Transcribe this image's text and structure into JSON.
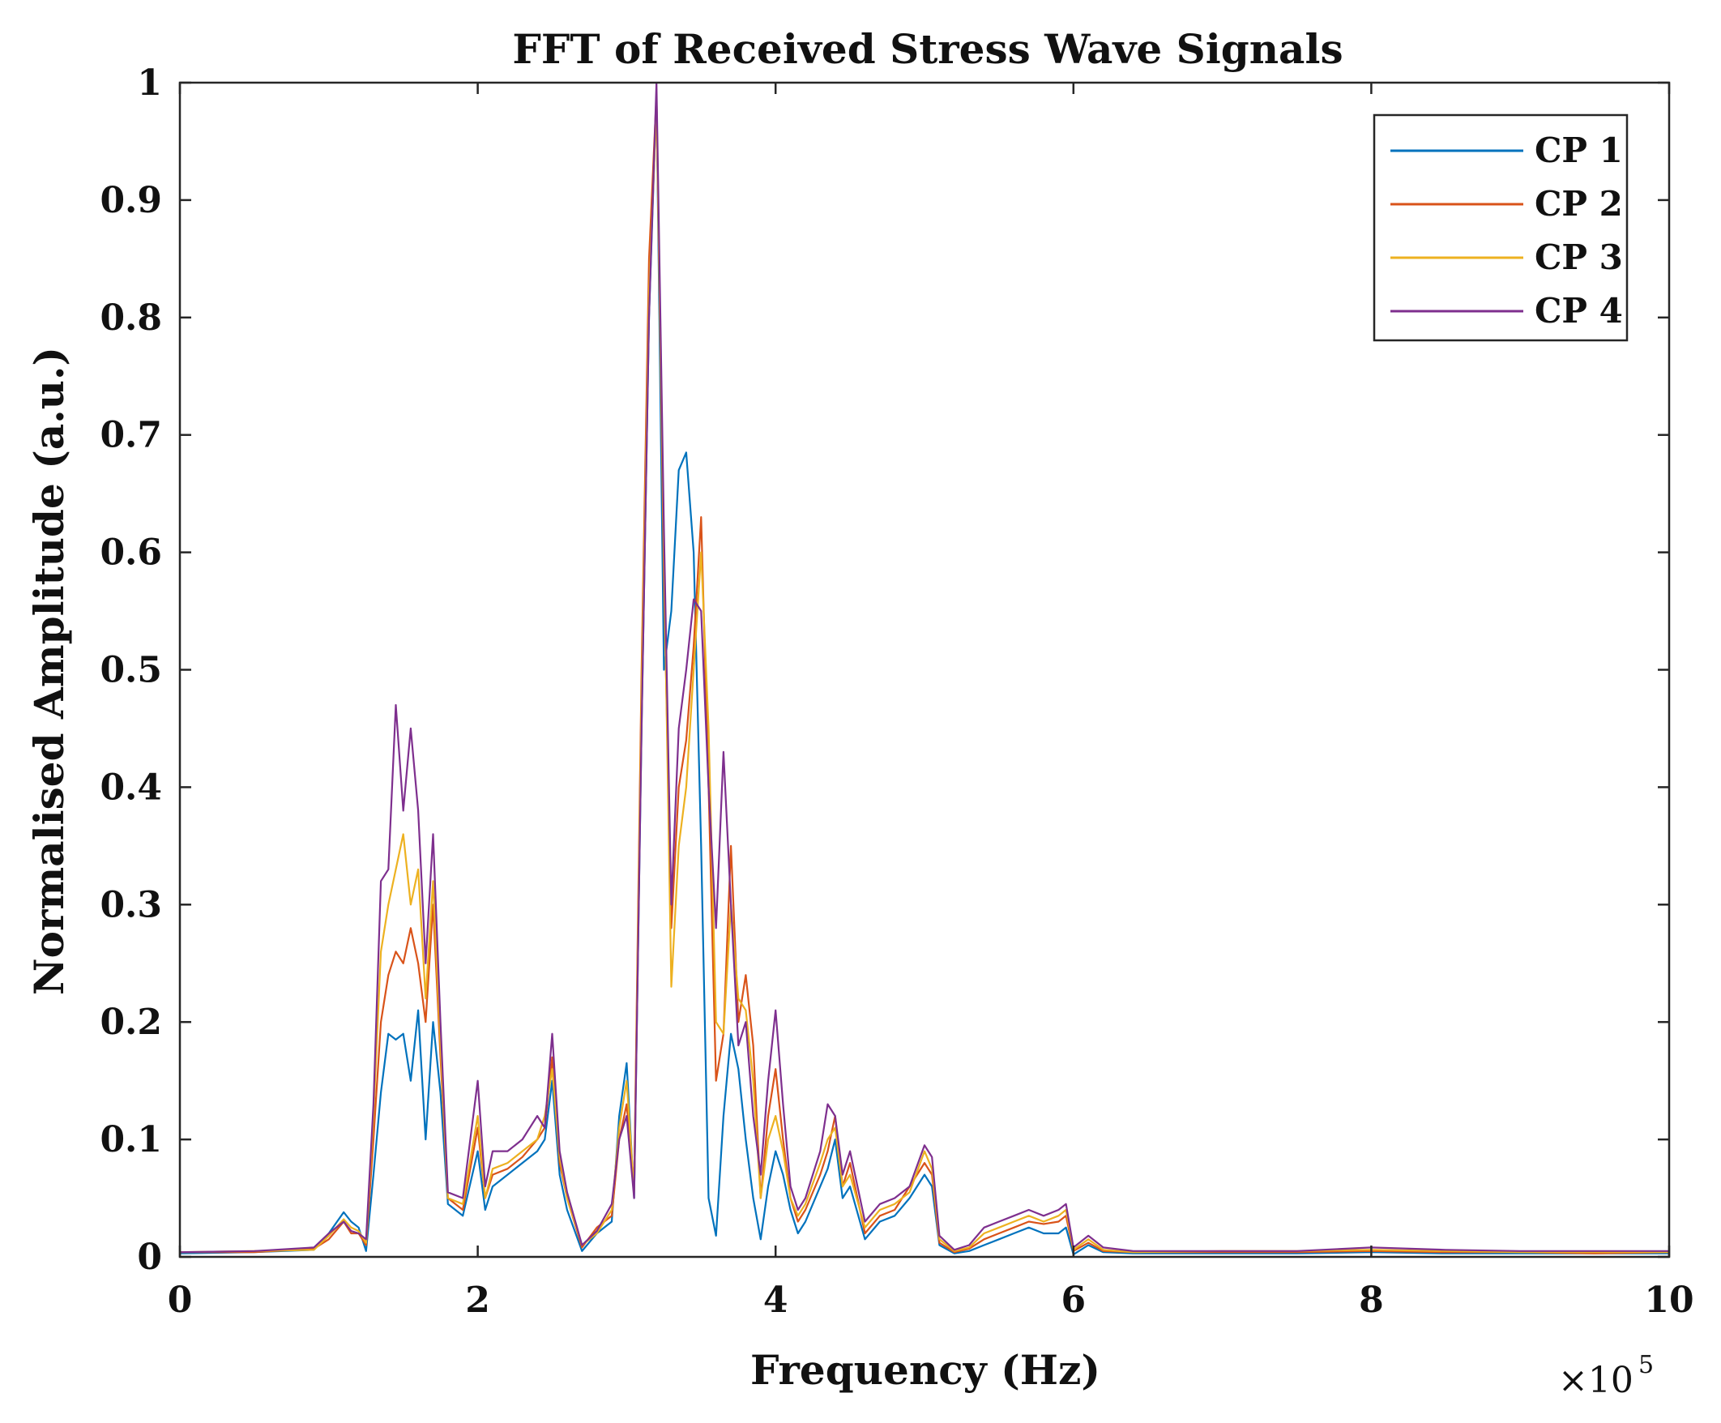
{
  "chart_data": {
    "type": "line",
    "title": "FFT of Received Stress Wave Signals",
    "xlabel": "Frequency (Hz)",
    "ylabel": "Normalised Amplitude (a.u.)",
    "x_multiplier_label": "×10",
    "x_multiplier_exponent": "5",
    "xlim": [
      0,
      10
    ],
    "ylim": [
      0,
      1
    ],
    "x_ticks": [
      0,
      2,
      4,
      6,
      8,
      10
    ],
    "x_tick_labels": [
      "0",
      "2",
      "4",
      "6",
      "8",
      "10"
    ],
    "y_ticks": [
      0,
      0.1,
      0.2,
      0.3,
      0.4,
      0.5,
      0.6,
      0.7,
      0.8,
      0.9,
      1
    ],
    "y_tick_labels": [
      "0",
      "0.1",
      "0.2",
      "0.3",
      "0.4",
      "0.5",
      "0.6",
      "0.7",
      "0.8",
      "0.9",
      "1"
    ],
    "grid": false,
    "legend_position": "top-right",
    "series": [
      {
        "name": "CP 1",
        "color": "#0072BD",
        "x": [
          0,
          0.5,
          0.9,
          1.0,
          1.1,
          1.15,
          1.2,
          1.25,
          1.3,
          1.35,
          1.4,
          1.45,
          1.5,
          1.55,
          1.6,
          1.65,
          1.7,
          1.75,
          1.8,
          1.9,
          2.0,
          2.05,
          2.1,
          2.2,
          2.3,
          2.4,
          2.45,
          2.5,
          2.55,
          2.6,
          2.7,
          2.8,
          2.9,
          2.95,
          3.0,
          3.05,
          3.1,
          3.15,
          3.2,
          3.25,
          3.3,
          3.35,
          3.4,
          3.45,
          3.5,
          3.55,
          3.6,
          3.65,
          3.7,
          3.75,
          3.8,
          3.85,
          3.9,
          3.95,
          4.0,
          4.05,
          4.1,
          4.15,
          4.2,
          4.3,
          4.35,
          4.4,
          4.45,
          4.5,
          4.6,
          4.7,
          4.8,
          4.9,
          5.0,
          5.05,
          5.1,
          5.2,
          5.3,
          5.4,
          5.5,
          5.6,
          5.7,
          5.8,
          5.9,
          5.95,
          6.0,
          6.1,
          6.2,
          6.4,
          7.0,
          7.5,
          8.0,
          8.5,
          9.0,
          9.5,
          10.0
        ],
        "values": [
          0.003,
          0.004,
          0.006,
          0.02,
          0.038,
          0.03,
          0.025,
          0.005,
          0.07,
          0.14,
          0.19,
          0.185,
          0.19,
          0.15,
          0.21,
          0.1,
          0.2,
          0.14,
          0.045,
          0.035,
          0.09,
          0.04,
          0.06,
          0.07,
          0.08,
          0.09,
          0.1,
          0.15,
          0.07,
          0.04,
          0.005,
          0.02,
          0.03,
          0.12,
          0.165,
          0.05,
          0.45,
          0.8,
          0.99,
          0.5,
          0.55,
          0.67,
          0.685,
          0.6,
          0.35,
          0.05,
          0.018,
          0.12,
          0.19,
          0.16,
          0.1,
          0.05,
          0.015,
          0.06,
          0.09,
          0.07,
          0.04,
          0.02,
          0.03,
          0.06,
          0.075,
          0.1,
          0.05,
          0.06,
          0.015,
          0.03,
          0.035,
          0.05,
          0.07,
          0.06,
          0.01,
          0.003,
          0.005,
          0.01,
          0.015,
          0.02,
          0.025,
          0.02,
          0.02,
          0.025,
          0.002,
          0.01,
          0.004,
          0.003,
          0.003,
          0.003,
          0.004,
          0.003,
          0.003,
          0.003,
          0.003
        ]
      },
      {
        "name": "CP 2",
        "color": "#D95319",
        "x": [
          0,
          0.5,
          0.9,
          1.0,
          1.1,
          1.15,
          1.2,
          1.25,
          1.3,
          1.35,
          1.4,
          1.45,
          1.5,
          1.55,
          1.6,
          1.65,
          1.7,
          1.75,
          1.8,
          1.9,
          2.0,
          2.05,
          2.1,
          2.2,
          2.3,
          2.4,
          2.45,
          2.5,
          2.55,
          2.6,
          2.7,
          2.8,
          2.9,
          2.95,
          3.0,
          3.05,
          3.1,
          3.15,
          3.2,
          3.25,
          3.3,
          3.35,
          3.4,
          3.45,
          3.5,
          3.55,
          3.6,
          3.65,
          3.7,
          3.75,
          3.8,
          3.85,
          3.9,
          3.95,
          4.0,
          4.05,
          4.1,
          4.15,
          4.2,
          4.3,
          4.35,
          4.4,
          4.45,
          4.5,
          4.6,
          4.7,
          4.8,
          4.9,
          5.0,
          5.05,
          5.1,
          5.2,
          5.3,
          5.4,
          5.5,
          5.6,
          5.7,
          5.8,
          5.9,
          5.95,
          6.0,
          6.1,
          6.2,
          6.4,
          7.0,
          7.5,
          8.0,
          8.5,
          9.0,
          9.5,
          10.0
        ],
        "values": [
          0.004,
          0.004,
          0.007,
          0.015,
          0.03,
          0.02,
          0.02,
          0.01,
          0.1,
          0.2,
          0.24,
          0.26,
          0.25,
          0.28,
          0.25,
          0.2,
          0.3,
          0.17,
          0.05,
          0.04,
          0.11,
          0.05,
          0.07,
          0.075,
          0.085,
          0.1,
          0.11,
          0.17,
          0.08,
          0.05,
          0.008,
          0.025,
          0.035,
          0.1,
          0.13,
          0.06,
          0.5,
          0.85,
          0.99,
          0.58,
          0.28,
          0.4,
          0.44,
          0.52,
          0.63,
          0.4,
          0.15,
          0.19,
          0.35,
          0.2,
          0.24,
          0.18,
          0.05,
          0.12,
          0.16,
          0.1,
          0.05,
          0.03,
          0.04,
          0.07,
          0.09,
          0.12,
          0.06,
          0.08,
          0.02,
          0.035,
          0.04,
          0.06,
          0.08,
          0.07,
          0.012,
          0.004,
          0.007,
          0.015,
          0.02,
          0.025,
          0.03,
          0.028,
          0.03,
          0.035,
          0.005,
          0.012,
          0.005,
          0.004,
          0.004,
          0.004,
          0.005,
          0.004,
          0.004,
          0.003,
          0.004
        ]
      },
      {
        "name": "CP 3",
        "color": "#EDB120",
        "x": [
          0,
          0.5,
          0.9,
          1.0,
          1.1,
          1.15,
          1.2,
          1.25,
          1.3,
          1.35,
          1.4,
          1.45,
          1.5,
          1.55,
          1.6,
          1.65,
          1.7,
          1.75,
          1.8,
          1.9,
          2.0,
          2.05,
          2.1,
          2.2,
          2.3,
          2.4,
          2.45,
          2.5,
          2.55,
          2.6,
          2.7,
          2.8,
          2.9,
          2.95,
          3.0,
          3.05,
          3.1,
          3.15,
          3.2,
          3.25,
          3.3,
          3.35,
          3.4,
          3.45,
          3.5,
          3.55,
          3.6,
          3.65,
          3.7,
          3.75,
          3.8,
          3.85,
          3.9,
          3.95,
          4.0,
          4.05,
          4.1,
          4.15,
          4.2,
          4.3,
          4.35,
          4.4,
          4.45,
          4.5,
          4.6,
          4.7,
          4.8,
          4.9,
          5.0,
          5.05,
          5.1,
          5.2,
          5.3,
          5.4,
          5.5,
          5.6,
          5.7,
          5.8,
          5.9,
          5.95,
          6.0,
          6.1,
          6.2,
          6.4,
          7.0,
          7.5,
          8.0,
          8.5,
          9.0,
          9.5,
          10.0
        ],
        "values": [
          0.004,
          0.005,
          0.006,
          0.018,
          0.032,
          0.025,
          0.022,
          0.012,
          0.12,
          0.26,
          0.3,
          0.33,
          0.36,
          0.3,
          0.33,
          0.22,
          0.32,
          0.18,
          0.05,
          0.045,
          0.12,
          0.05,
          0.075,
          0.08,
          0.09,
          0.1,
          0.12,
          0.16,
          0.085,
          0.05,
          0.01,
          0.02,
          0.04,
          0.11,
          0.15,
          0.055,
          0.48,
          0.82,
          0.98,
          0.6,
          0.23,
          0.35,
          0.4,
          0.5,
          0.6,
          0.45,
          0.2,
          0.19,
          0.3,
          0.22,
          0.21,
          0.15,
          0.05,
          0.1,
          0.12,
          0.09,
          0.05,
          0.035,
          0.045,
          0.08,
          0.1,
          0.11,
          0.06,
          0.07,
          0.025,
          0.04,
          0.045,
          0.055,
          0.09,
          0.075,
          0.015,
          0.005,
          0.008,
          0.02,
          0.025,
          0.03,
          0.035,
          0.03,
          0.035,
          0.04,
          0.006,
          0.015,
          0.006,
          0.004,
          0.005,
          0.005,
          0.006,
          0.005,
          0.004,
          0.004,
          0.004
        ]
      },
      {
        "name": "CP 4",
        "color": "#7E2F8E",
        "x": [
          0,
          0.5,
          0.9,
          1.0,
          1.1,
          1.15,
          1.2,
          1.25,
          1.3,
          1.35,
          1.4,
          1.45,
          1.5,
          1.55,
          1.6,
          1.65,
          1.7,
          1.75,
          1.8,
          1.9,
          2.0,
          2.05,
          2.1,
          2.2,
          2.3,
          2.4,
          2.45,
          2.5,
          2.55,
          2.6,
          2.7,
          2.8,
          2.9,
          2.95,
          3.0,
          3.05,
          3.1,
          3.15,
          3.2,
          3.25,
          3.3,
          3.35,
          3.4,
          3.45,
          3.5,
          3.55,
          3.6,
          3.65,
          3.7,
          3.75,
          3.8,
          3.85,
          3.9,
          3.95,
          4.0,
          4.05,
          4.1,
          4.15,
          4.2,
          4.3,
          4.35,
          4.4,
          4.45,
          4.5,
          4.6,
          4.7,
          4.8,
          4.9,
          5.0,
          5.05,
          5.1,
          5.2,
          5.3,
          5.4,
          5.5,
          5.6,
          5.7,
          5.8,
          5.9,
          5.95,
          6.0,
          6.1,
          6.2,
          6.4,
          7.0,
          7.5,
          8.0,
          8.5,
          9.0,
          9.5,
          10.0
        ],
        "values": [
          0.004,
          0.005,
          0.008,
          0.02,
          0.03,
          0.022,
          0.02,
          0.015,
          0.13,
          0.32,
          0.33,
          0.47,
          0.38,
          0.45,
          0.38,
          0.25,
          0.36,
          0.2,
          0.055,
          0.05,
          0.15,
          0.06,
          0.09,
          0.09,
          0.1,
          0.12,
          0.11,
          0.19,
          0.09,
          0.055,
          0.01,
          0.022,
          0.045,
          0.1,
          0.12,
          0.05,
          0.45,
          0.8,
          1.0,
          0.62,
          0.3,
          0.45,
          0.5,
          0.56,
          0.55,
          0.4,
          0.28,
          0.43,
          0.3,
          0.18,
          0.2,
          0.12,
          0.07,
          0.15,
          0.21,
          0.13,
          0.06,
          0.04,
          0.05,
          0.09,
          0.13,
          0.12,
          0.07,
          0.09,
          0.03,
          0.045,
          0.05,
          0.06,
          0.095,
          0.085,
          0.018,
          0.006,
          0.01,
          0.025,
          0.03,
          0.035,
          0.04,
          0.035,
          0.04,
          0.045,
          0.008,
          0.018,
          0.008,
          0.005,
          0.005,
          0.005,
          0.008,
          0.006,
          0.005,
          0.005,
          0.005
        ]
      }
    ]
  }
}
